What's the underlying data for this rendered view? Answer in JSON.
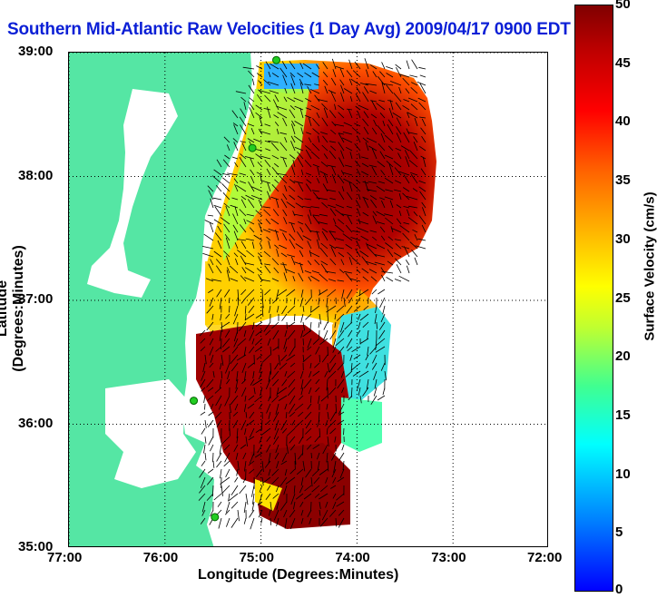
{
  "title": "Southern Mid-Atlantic Raw Velocities (1 Day Avg) 2009/04/17 0900 EDT",
  "axes": {
    "xlabel": "Longitude (Degrees:Minutes)",
    "ylabel": "Latitude (Degrees:Minutes)",
    "x_ticks": [
      "77:00",
      "76:00",
      "75:00",
      "74:00",
      "73:00",
      "72:00"
    ],
    "y_ticks": [
      "39:00",
      "38:00",
      "37:00",
      "36:00",
      "35:00"
    ],
    "xlim": [
      -77,
      -72
    ],
    "ylim": [
      35,
      39
    ],
    "grid": true
  },
  "colorbar": {
    "label": "Surface Velocity (cm/s)",
    "ticks": [
      "0",
      "5",
      "10",
      "15",
      "20",
      "25",
      "30",
      "35",
      "40",
      "45",
      "50"
    ],
    "range": [
      0,
      50
    ],
    "colormap": "jet"
  },
  "colors": {
    "title": "#0b1fd6",
    "land": "#55e6a4",
    "water": "#ffffff",
    "station": "#22cc22"
  },
  "stations": [
    {
      "name": "station",
      "lon": -74.84,
      "lat": 38.94
    },
    {
      "name": "station",
      "lon": -75.09,
      "lat": 38.23
    },
    {
      "name": "station",
      "lon": -75.7,
      "lat": 36.19
    },
    {
      "name": "station",
      "lon": -75.48,
      "lat": 35.25
    }
  ]
}
